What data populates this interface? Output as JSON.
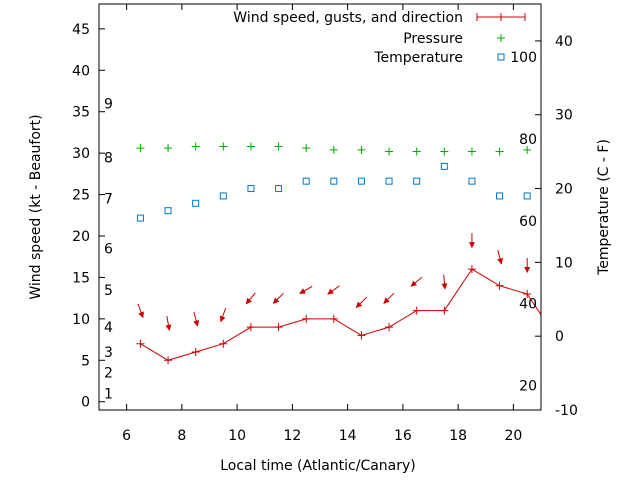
{
  "chart_data": {
    "type": "line",
    "xlabel": "Local time (Atlantic/Canary)",
    "ylabel": "Wind speed (kt - Beaufort)",
    "y2label": "Temperature (C - F)",
    "xlim": [
      5,
      21
    ],
    "ylim": [
      -1,
      48
    ],
    "y2lim": [
      -10,
      45
    ],
    "x_ticks": [
      "6",
      "8",
      "10",
      "12",
      "14",
      "16",
      "18",
      "20"
    ],
    "y_ticks": [
      "0",
      "5",
      "10",
      "15",
      "20",
      "25",
      "30",
      "35",
      "40",
      "45"
    ],
    "y2_ticks": [
      "-10",
      "0",
      "10",
      "20",
      "30",
      "40"
    ],
    "beaufort_labels": [
      {
        "label": "1",
        "value": 1
      },
      {
        "label": "2",
        "value": 3.5
      },
      {
        "label": "3",
        "value": 6
      },
      {
        "label": "4",
        "value": 9
      },
      {
        "label": "5",
        "value": 13.5
      },
      {
        "label": "6",
        "value": 18.5
      },
      {
        "label": "7",
        "value": 24.5
      },
      {
        "label": "8",
        "value": 29.5
      },
      {
        "label": "9",
        "value": 36
      }
    ],
    "fahrenheit_labels": [
      {
        "label": "20",
        "value": -6.7
      },
      {
        "label": "40",
        "value": 4.4
      },
      {
        "label": "60",
        "value": 15.6
      },
      {
        "label": "80",
        "value": 26.7
      },
      {
        "label": "100",
        "value": 37.8
      }
    ],
    "legend": [
      {
        "name": "Wind speed, gusts, and direction",
        "marker": "line-plus",
        "color": "#cc0000"
      },
      {
        "name": "Pressure",
        "marker": "plus",
        "color": "#00aa00"
      },
      {
        "name": "Temperature",
        "marker": "square",
        "color": "#0077cc"
      }
    ],
    "legend_position": "top-right",
    "series": [
      {
        "name": "Wind speed, gusts, and direction",
        "axis": "left",
        "color": "#cc0000",
        "x": [
          6.5,
          7.5,
          8.5,
          9.5,
          10.5,
          11.5,
          12.5,
          13.5,
          14.5,
          15.5,
          16.5,
          17.5,
          18.5,
          19.5,
          20.5,
          21
        ],
        "y": [
          7,
          5,
          6,
          7,
          9,
          9,
          10,
          10,
          8,
          9,
          11,
          11,
          16,
          14,
          13,
          10.5
        ]
      },
      {
        "name": "Pressure",
        "axis": "left",
        "color": "#00aa00",
        "x": [
          6.5,
          7.5,
          8.5,
          9.5,
          10.5,
          11.5,
          12.5,
          13.5,
          14.5,
          15.5,
          16.5,
          17.5,
          18.5,
          19.5,
          20.5
        ],
        "y": [
          30.6,
          30.6,
          30.8,
          30.8,
          30.8,
          30.8,
          30.6,
          30.4,
          30.4,
          30.2,
          30.2,
          30.2,
          30.2,
          30.2,
          30.4
        ]
      },
      {
        "name": "Temperature",
        "axis": "right",
        "color": "#0077cc",
        "x": [
          6.5,
          7.5,
          8.5,
          9.5,
          10.5,
          11.5,
          12.5,
          13.5,
          14.5,
          15.5,
          16.5,
          17.5,
          18.5,
          19.5,
          20.5
        ],
        "y": [
          16,
          17,
          18,
          19,
          20,
          20,
          21,
          21,
          21,
          21,
          21,
          23,
          21,
          19,
          19
        ]
      }
    ],
    "wind_arrows": {
      "color": "#cc0000",
      "x": [
        6.5,
        7.5,
        8.5,
        9.5,
        10.5,
        11.5,
        12.5,
        13.5,
        14.5,
        15.5,
        16.5,
        17.5,
        18.5,
        19.5,
        20.5
      ],
      "y": [
        11,
        9.5,
        10,
        10.5,
        12.5,
        12.5,
        13.5,
        13.5,
        12,
        12.5,
        14.5,
        14.5,
        19.5,
        17.5,
        16.5
      ],
      "from_direction_deg": [
        340,
        350,
        345,
        20,
        40,
        45,
        60,
        55,
        45,
        45,
        50,
        355,
        0,
        345,
        0
      ]
    }
  }
}
